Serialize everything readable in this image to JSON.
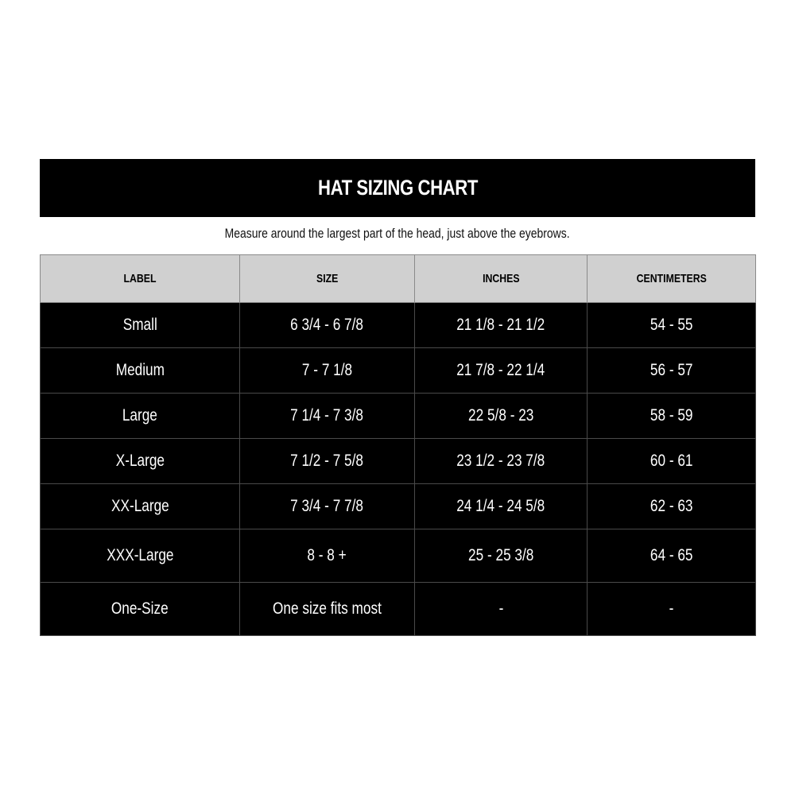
{
  "title": "HAT SIZING CHART",
  "subtitle": "Measure around the largest part of the head, just above the eyebrows.",
  "colors": {
    "header_bar": "#000000",
    "column_header_bg": "#d0d0d0",
    "row_bg": "#000000",
    "row_text": "#ffffff"
  },
  "table": {
    "headers": [
      "LABEL",
      "SIZE",
      "INCHES",
      "CENTIMETERS"
    ],
    "rows": [
      [
        "Small",
        "6 3/4 - 6 7/8",
        "21 1/8 - 21 1/2",
        "54 - 55"
      ],
      [
        "Medium",
        "7 - 7 1/8",
        "21 7/8 - 22 1/4",
        "56 - 57"
      ],
      [
        "Large",
        "7 1/4 - 7 3/8",
        "22 5/8 - 23",
        "58 - 59"
      ],
      [
        "X-Large",
        "7 1/2 - 7 5/8",
        "23 1/2 - 23 7/8",
        "60 - 61"
      ],
      [
        "XX-Large",
        "7 3/4 - 7 7/8",
        "24 1/4 - 24 5/8",
        "62 - 63"
      ],
      [
        "XXX-Large",
        "8 - 8 +",
        "25 - 25 3/8",
        "64 - 65"
      ],
      [
        "One-Size",
        "One size fits most",
        "-",
        "-"
      ]
    ]
  }
}
